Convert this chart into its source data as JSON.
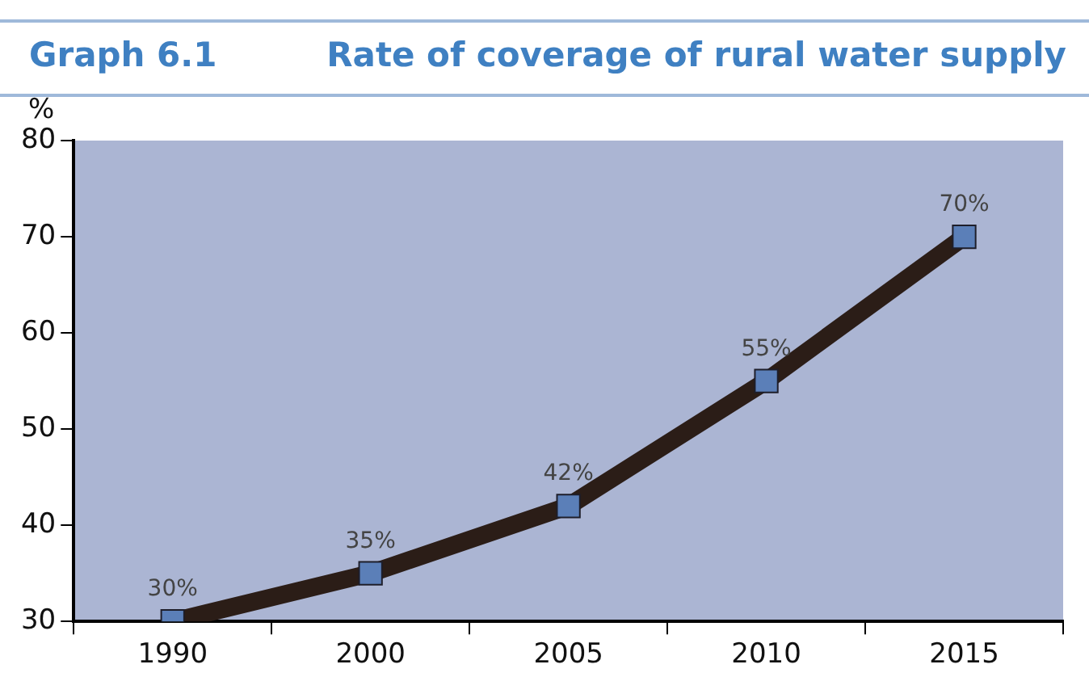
{
  "chart_data": {
    "type": "line",
    "title": "Graph 6.1",
    "subtitle": "Rate of coverage of rural water supply",
    "ylabel": "%",
    "categories": [
      "1990",
      "2000",
      "2005",
      "2010",
      "2015"
    ],
    "series": [
      {
        "color": "#2b1d17",
        "values": [
          30,
          35,
          42,
          55,
          70
        ],
        "value_labels": [
          "30%",
          "35%",
          "42%",
          "55%",
          "70%"
        ]
      }
    ],
    "ylim": [
      30,
      80
    ],
    "yticks": [
      30,
      40,
      50,
      60,
      70,
      80
    ],
    "grid": false,
    "legend": false,
    "marker": "square",
    "line_style": "solid"
  }
}
